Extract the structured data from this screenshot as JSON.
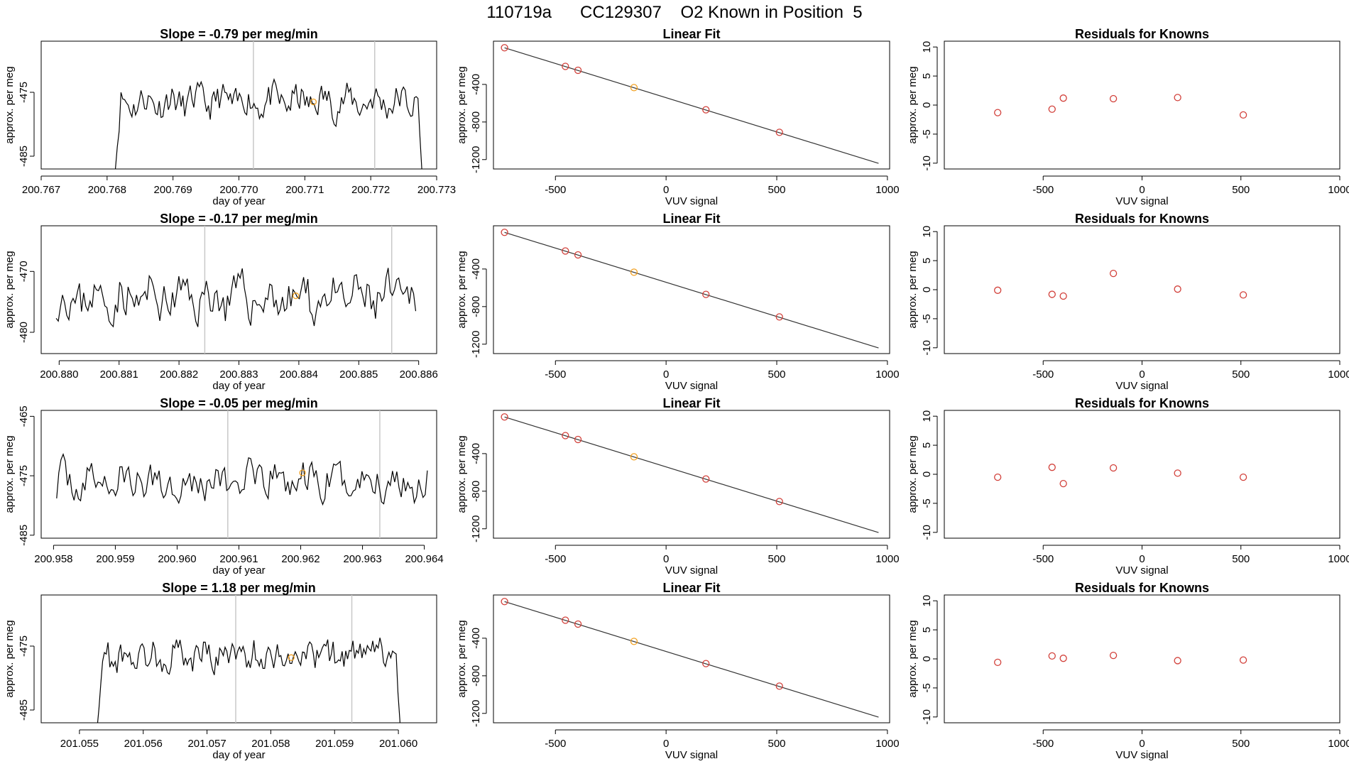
{
  "header": {
    "title": "110719a      CC129307    O2 Known in Position  5"
  },
  "chart_data": [
    {
      "type": "line",
      "row": 1,
      "panel": "time-series",
      "title": "Slope =  -0.79  per meg/min",
      "xlabel": "day of year",
      "ylabel": "approx. per meg",
      "xlim": [
        200.767,
        200.773
      ],
      "ylim": [
        -487,
        -467
      ],
      "xticks": [
        "200.767",
        "200.768",
        "200.769",
        "200.770",
        "200.771",
        "200.772",
        "200.773"
      ],
      "yticks": [
        "-485",
        "-475"
      ],
      "yticks_values": [
        -485,
        -475
      ],
      "vlines": [
        200.77022,
        200.77206
      ],
      "start": 200.7681,
      "end": 200.7728,
      "base": -476.5,
      "amp": 2.2,
      "ramp_start": -490,
      "ramp_end": -492,
      "seed": 11,
      "marker": {
        "x": 200.77113,
        "y": -476.5
      }
    },
    {
      "type": "scatter",
      "row": 1,
      "panel": "linear-fit",
      "title": "Linear Fit",
      "xlabel": "VUV signal",
      "ylabel": "approx. per meg",
      "xlim": [
        -780,
        1010
      ],
      "ylim": [
        -1300,
        60
      ],
      "xticks": [
        "-500",
        "0",
        "500",
        "1000"
      ],
      "yticks": [
        "-400",
        "-800",
        "-1200"
      ],
      "line": {
        "x": [
          -730,
          960
        ],
        "y": [
          -10,
          -1240
        ]
      },
      "points": {
        "x": [
          -730,
          -455,
          -398,
          -145,
          180,
          512
        ],
        "y": [
          -10,
          -208,
          -250,
          -434,
          -670,
          -910
        ]
      },
      "highlight_index": 3
    },
    {
      "type": "scatter",
      "row": 1,
      "panel": "residuals",
      "title": "Residuals for Knowns",
      "xlabel": "VUV signal",
      "ylabel": "approx. per meg",
      "xlim": [
        -1000,
        1000
      ],
      "ylim": [
        -11,
        11
      ],
      "xticks": [
        "-500",
        "0",
        "500",
        "1000"
      ],
      "yticks": [
        "10",
        "5",
        "0",
        "-5",
        "-10"
      ],
      "points": {
        "x": [
          -730,
          -455,
          -398,
          -145,
          180,
          512
        ],
        "y": [
          -1.3,
          -0.7,
          1.2,
          1.1,
          1.3,
          -1.7
        ]
      }
    },
    {
      "type": "line",
      "row": 2,
      "panel": "time-series",
      "title": "Slope =  -0.17  per meg/min",
      "xlabel": "day of year",
      "ylabel": "approx. per meg",
      "xlim": [
        200.8797,
        200.8863
      ],
      "ylim": [
        -483.5,
        -462.5
      ],
      "xticks": [
        "200.880",
        "200.881",
        "200.882",
        "200.883",
        "200.884",
        "200.885",
        "200.886"
      ],
      "yticks": [
        "-470",
        "-480"
      ],
      "yticks_values": [
        -470,
        -480
      ],
      "vlines": [
        200.88243,
        200.88555
      ],
      "start": 200.87995,
      "end": 200.88595,
      "base": -474.5,
      "amp": 3.2,
      "seed": 23,
      "marker": {
        "x": 200.88395,
        "y": -474.0
      }
    },
    {
      "type": "scatter",
      "row": 2,
      "panel": "linear-fit",
      "title": "Linear Fit",
      "xlabel": "VUV signal",
      "ylabel": "approx. per meg",
      "xlim": [
        -780,
        1010
      ],
      "ylim": [
        -1300,
        60
      ],
      "xticks": [
        "-500",
        "0",
        "500",
        "1000"
      ],
      "yticks": [
        "-400",
        "-800",
        "-1200"
      ],
      "line": {
        "x": [
          -730,
          960
        ],
        "y": [
          -10,
          -1240
        ]
      },
      "points": {
        "x": [
          -730,
          -455,
          -398,
          -145,
          180,
          512
        ],
        "y": [
          -10,
          -208,
          -250,
          -434,
          -670,
          -910
        ]
      },
      "highlight_index": 3
    },
    {
      "type": "scatter",
      "row": 2,
      "panel": "residuals",
      "title": "Residuals for Knowns",
      "xlabel": "VUV signal",
      "ylabel": "approx. per meg",
      "xlim": [
        -1000,
        1000
      ],
      "ylim": [
        -11,
        11
      ],
      "xticks": [
        "-500",
        "0",
        "500",
        "1000"
      ],
      "yticks": [
        "10",
        "5",
        "0",
        "-5",
        "-10"
      ],
      "points": {
        "x": [
          -730,
          -455,
          -398,
          -145,
          180,
          512
        ],
        "y": [
          -0.1,
          -0.8,
          -1.1,
          2.8,
          0.1,
          -0.9
        ]
      }
    },
    {
      "type": "line",
      "row": 3,
      "panel": "time-series",
      "title": "Slope =  -0.05  per meg/min",
      "xlabel": "day of year",
      "ylabel": "approx. per meg",
      "xlim": [
        200.9578,
        200.9642
      ],
      "ylim": [
        -485.5,
        -464
      ],
      "xticks": [
        "200.958",
        "200.959",
        "200.960",
        "200.961",
        "200.962",
        "200.963",
        "200.964"
      ],
      "yticks": [
        "-465",
        "-475",
        "-485"
      ],
      "yticks_values": [
        -465,
        -475,
        -485
      ],
      "vlines": [
        200.96082,
        200.96328
      ],
      "start": 200.95805,
      "end": 200.96405,
      "base": -476.0,
      "amp": 2.8,
      "seed": 37,
      "marker": {
        "x": 200.96203,
        "y": -474.5
      }
    },
    {
      "type": "scatter",
      "row": 3,
      "panel": "linear-fit",
      "title": "Linear Fit",
      "xlabel": "VUV signal",
      "ylabel": "approx. per meg",
      "xlim": [
        -780,
        1010
      ],
      "ylim": [
        -1300,
        60
      ],
      "xticks": [
        "-500",
        "0",
        "500",
        "1000"
      ],
      "yticks": [
        "-400",
        "-800",
        "-1200"
      ],
      "line": {
        "x": [
          -730,
          960
        ],
        "y": [
          -10,
          -1240
        ]
      },
      "points": {
        "x": [
          -730,
          -455,
          -398,
          -145,
          180,
          512
        ],
        "y": [
          -10,
          -208,
          -250,
          -434,
          -670,
          -910
        ]
      },
      "highlight_index": 3
    },
    {
      "type": "scatter",
      "row": 3,
      "panel": "residuals",
      "title": "Residuals for Knowns",
      "xlabel": "VUV signal",
      "ylabel": "approx. per meg",
      "xlim": [
        -1000,
        1000
      ],
      "ylim": [
        -11,
        11
      ],
      "xticks": [
        "-500",
        "0",
        "500",
        "1000"
      ],
      "yticks": [
        "10",
        "5",
        "0",
        "-5",
        "-10"
      ],
      "points": {
        "x": [
          -730,
          -455,
          -398,
          -145,
          180,
          512
        ],
        "y": [
          -0.5,
          1.2,
          -1.6,
          1.1,
          0.2,
          -0.5
        ]
      }
    },
    {
      "type": "line",
      "row": 4,
      "panel": "time-series",
      "title": "Slope =  1.18  per meg/min",
      "xlabel": "day of year",
      "ylabel": "approx. per meg",
      "xlim": [
        201.0544,
        201.0606
      ],
      "ylim": [
        -487,
        -467
      ],
      "xticks": [
        "201.055",
        "201.056",
        "201.057",
        "201.058",
        "201.059",
        "201.060"
      ],
      "yticks": [
        "-485",
        "-475"
      ],
      "yticks_values": [
        -485,
        -475
      ],
      "vlines": [
        201.05745,
        201.05927
      ],
      "start": 201.05525,
      "end": 201.06005,
      "base": -476.5,
      "amp": 2.2,
      "ramp_start": -492,
      "ramp_end": -492,
      "seed": 53,
      "marker": {
        "x": 201.05832,
        "y": -476.8
      }
    },
    {
      "type": "scatter",
      "row": 4,
      "panel": "linear-fit",
      "title": "Linear Fit",
      "xlabel": "VUV signal",
      "ylabel": "approx. per meg",
      "xlim": [
        -780,
        1010
      ],
      "ylim": [
        -1300,
        60
      ],
      "xticks": [
        "-500",
        "0",
        "500",
        "1000"
      ],
      "yticks": [
        "-400",
        "-800",
        "-1200"
      ],
      "line": {
        "x": [
          -730,
          960
        ],
        "y": [
          -10,
          -1240
        ]
      },
      "points": {
        "x": [
          -730,
          -455,
          -398,
          -145,
          180,
          512
        ],
        "y": [
          -10,
          -208,
          -250,
          -434,
          -670,
          -910
        ]
      },
      "highlight_index": 3
    },
    {
      "type": "scatter",
      "row": 4,
      "panel": "residuals",
      "title": "Residuals for Knowns",
      "xlabel": "VUV signal",
      "ylabel": "approx. per meg",
      "xlim": [
        -1000,
        1000
      ],
      "ylim": [
        -11,
        11
      ],
      "xticks": [
        "-500",
        "0",
        "500",
        "1000"
      ],
      "yticks": [
        "10",
        "5",
        "0",
        "-5",
        "-10"
      ],
      "points": {
        "x": [
          -730,
          -455,
          -398,
          -145,
          180,
          512
        ],
        "y": [
          -0.6,
          0.5,
          0.1,
          0.6,
          -0.3,
          -0.2
        ]
      }
    }
  ],
  "colors": {
    "line": "#000000",
    "vline": "#c8c8c8",
    "point": "#d2403a",
    "highlight": "#f2a020",
    "fit": "#333333"
  }
}
